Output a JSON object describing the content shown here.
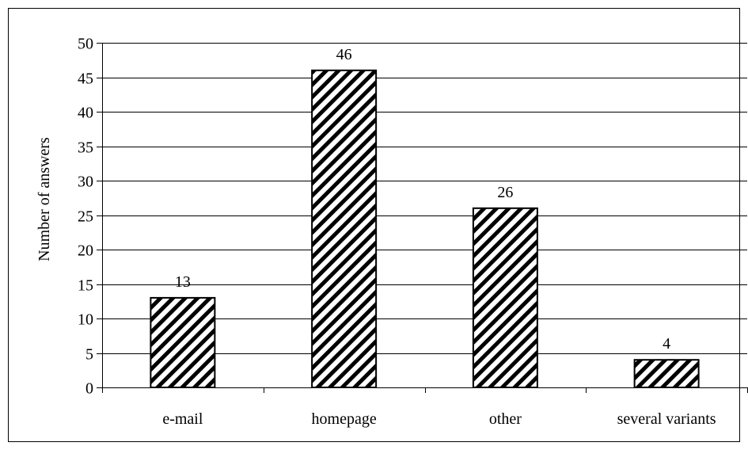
{
  "chart_data": {
    "type": "bar",
    "title": "",
    "xlabel": "",
    "ylabel": "Number of answers",
    "categories": [
      "e-mail",
      "homepage",
      "other",
      "several variants"
    ],
    "values": [
      13,
      46,
      26,
      4
    ],
    "data_labels": [
      "13",
      "46",
      "26",
      "4"
    ],
    "ylim": [
      0,
      50
    ],
    "yticks": [
      0,
      5,
      10,
      15,
      20,
      25,
      30,
      35,
      40,
      45,
      50
    ],
    "grid": "horizontal",
    "legend": "none",
    "bar_fill": "diagonal-hatch",
    "colors": {
      "bar_stroke": "#000000",
      "hatch": "#000000",
      "grid": "#000000"
    }
  }
}
